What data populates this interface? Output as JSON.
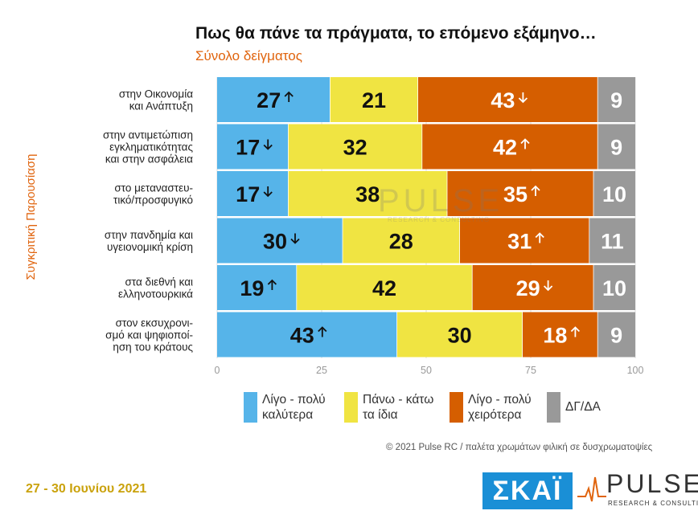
{
  "title": "Πως θα πάνε τα πράγματα, το επόμενο εξάμηνο…",
  "subtitle": "Σύνολο δείγματος",
  "vertical_label": "Συγκριτική Παρουσίαση",
  "copyright": "© 2021 Pulse RC  /  παλέτα χρωμάτων φιλική σε δυσχρωματοψίες",
  "date": "27 - 30 Ιουνίου 2021",
  "logos": {
    "skai": "ΣΚΑΪ",
    "pulse": "PULSE",
    "pulse_sub": "RESEARCH & CONSULTING"
  },
  "watermark": {
    "word": "PULSE",
    "sub": "RESEARCH & CONSULTING"
  },
  "colors": {
    "better": "#56b4e9",
    "same": "#f0e442",
    "worse": "#d55e00",
    "dk": "#999999",
    "accent": "#e0640e",
    "date": "#caa20c",
    "skai": "#1a8fd6"
  },
  "chart_data": {
    "type": "bar",
    "orientation": "horizontal",
    "stacked": true,
    "categories": [
      [
        "στην Οικονομία",
        "και Ανάπτυξη"
      ],
      [
        "στην αντιμετώπιση",
        "εγκληματικότητας",
        "και στην ασφάλεια"
      ],
      [
        "στο μεταναστευ-",
        "τικό/προσφυγικό"
      ],
      [
        "στην πανδημία και",
        "υγειονομική κρίση"
      ],
      [
        "στα διεθνή και",
        "ελληνοτουρκικά"
      ],
      [
        "στον εκσυχρονι-",
        "σμό και ψηφιοποί-",
        "ηση του κράτους"
      ]
    ],
    "series": [
      {
        "name": "Λίγο - πολύ καλύτερα",
        "values": [
          27,
          17,
          17,
          30,
          19,
          43
        ],
        "trend": [
          "up",
          "down",
          "down",
          "down",
          "up",
          "up"
        ]
      },
      {
        "name": "Πάνω - κάτω τα ίδια",
        "values": [
          21,
          32,
          38,
          28,
          42,
          30
        ],
        "trend": [
          "",
          "",
          "",
          "",
          "",
          ""
        ]
      },
      {
        "name": "Λίγο - πολύ χειρότερα",
        "values": [
          43,
          42,
          35,
          31,
          29,
          18
        ],
        "trend": [
          "down",
          "up",
          "up",
          "up",
          "down",
          "up"
        ]
      },
      {
        "name": "ΔΓ/ΔΑ",
        "values": [
          9,
          9,
          10,
          11,
          10,
          9
        ],
        "trend": [
          "",
          "",
          "",
          "",
          "",
          ""
        ]
      }
    ],
    "legend": [
      "Λίγο - πολύ\nκαλύτερα",
      "Πάνω - κάτω\nτα ίδια",
      "Λίγο - πολύ\nχειρότερα",
      "ΔΓ/ΔΑ"
    ],
    "xticks": [
      "0",
      "25",
      "50",
      "75",
      "100"
    ],
    "xlim": [
      0,
      100
    ],
    "title": "Πως θα πάνε τα πράγματα, το επόμενο εξάμηνο…",
    "xlabel": "",
    "ylabel": "Συγκριτική Παρουσίαση"
  }
}
